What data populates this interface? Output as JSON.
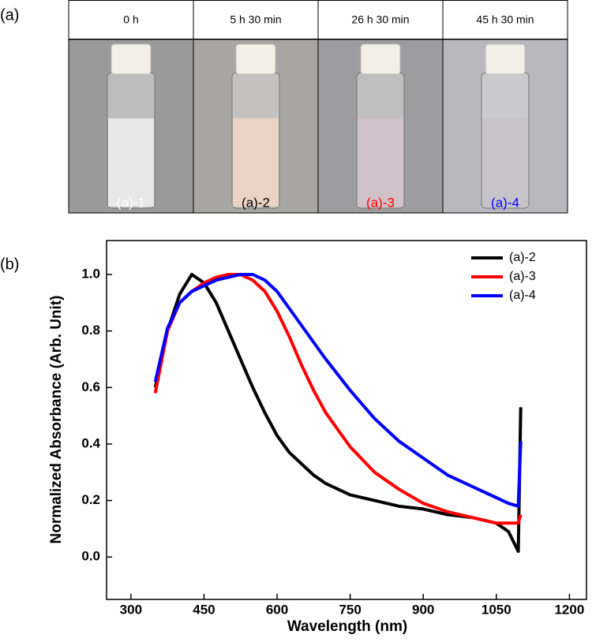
{
  "panel_a": {
    "label": "(a)",
    "columns": [
      {
        "header": "0 h",
        "sample": "(a)-1",
        "sample_color": "#ffffff"
      },
      {
        "header": "5 h 30 min",
        "sample": "(a)-2",
        "sample_color": "#000000"
      },
      {
        "header": "26 h 30 min",
        "sample": "(a)-3",
        "sample_color": "#ff0000"
      },
      {
        "header": "45 h 30 min",
        "sample": "(a)-4",
        "sample_color": "#0000ff"
      }
    ]
  },
  "panel_b_label": "(b)",
  "chart_data": {
    "type": "line",
    "x_label": "Wavelength (nm)",
    "y_label": "Normalized Absorbance (Arb. Unit)",
    "x": [
      350,
      375,
      400,
      425,
      450,
      475,
      500,
      525,
      550,
      575,
      600,
      625,
      650,
      675,
      700,
      750,
      800,
      850,
      900,
      950,
      1000,
      1050,
      1075,
      1095,
      1100
    ],
    "series": [
      {
        "name": "(a)-2",
        "color": "#000000",
        "values": [
          0.6,
          0.8,
          0.93,
          1.0,
          0.97,
          0.9,
          0.8,
          0.7,
          0.6,
          0.51,
          0.43,
          0.37,
          0.33,
          0.29,
          0.26,
          0.22,
          0.2,
          0.18,
          0.17,
          0.15,
          0.14,
          0.12,
          0.09,
          0.02,
          0.53
        ]
      },
      {
        "name": "(a)-3",
        "color": "#ff0000",
        "values": [
          0.58,
          0.8,
          0.9,
          0.94,
          0.97,
          0.99,
          1.0,
          1.0,
          0.98,
          0.94,
          0.87,
          0.78,
          0.68,
          0.59,
          0.51,
          0.39,
          0.3,
          0.24,
          0.19,
          0.16,
          0.14,
          0.12,
          0.12,
          0.12,
          0.15
        ]
      },
      {
        "name": "(a)-4",
        "color": "#0000ff",
        "values": [
          0.62,
          0.81,
          0.9,
          0.94,
          0.96,
          0.98,
          0.99,
          1.0,
          1.0,
          0.98,
          0.94,
          0.88,
          0.82,
          0.76,
          0.7,
          0.59,
          0.49,
          0.41,
          0.35,
          0.29,
          0.25,
          0.21,
          0.19,
          0.18,
          0.41
        ]
      }
    ],
    "xlim": [
      250,
      1235
    ],
    "xticks": [
      300,
      450,
      600,
      750,
      900,
      1050,
      1200
    ],
    "ylim": [
      -0.15,
      1.12
    ],
    "yticks": [
      {
        "value": 0,
        "label": "0.0"
      },
      0.2,
      0.4,
      0.6,
      0.8,
      {
        "value": 1,
        "label": "1.0"
      }
    ],
    "legend": "upper right"
  }
}
